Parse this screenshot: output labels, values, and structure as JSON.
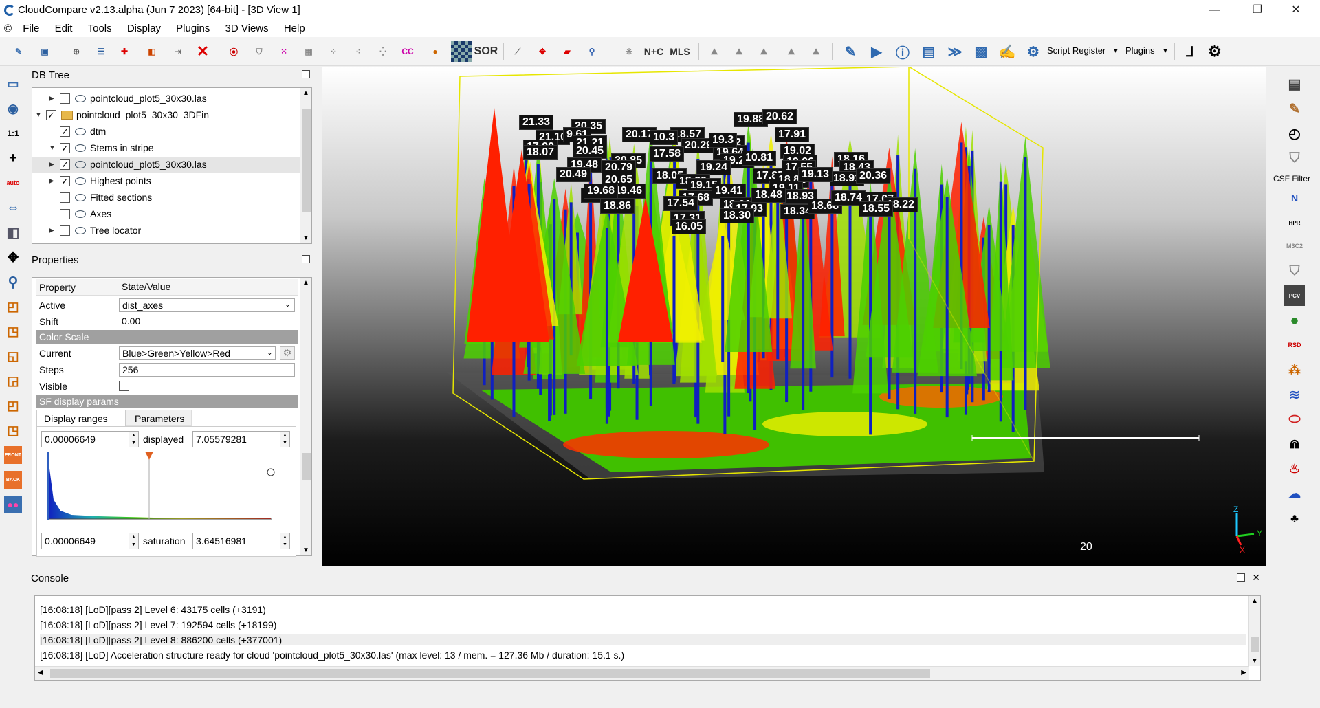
{
  "window": {
    "title": "CloudCompare v2.13.alpha (Jun  7 2023) [64-bit] - [3D View 1]",
    "min": "—",
    "max": "❐",
    "close": "✕"
  },
  "menu": [
    "File",
    "Edit",
    "Tools",
    "Display",
    "Plugins",
    "3D Views",
    "Help"
  ],
  "toolbar": {
    "sor": "SOR",
    "ncc": "N+C",
    "mls": "MLS",
    "cc": "CC",
    "script_register": "Script Register",
    "plugins": "Plugins"
  },
  "dbtree": {
    "title": "DB Tree",
    "items": [
      {
        "label": "pointcloud_plot5_30x30.las",
        "checked": false,
        "expand": "▶"
      },
      {
        "label": "pointcloud_plot5_30x30_3DFin",
        "checked": true,
        "expand": "▼"
      },
      {
        "label": "dtm",
        "checked": true,
        "expand": ""
      },
      {
        "label": "Stems in stripe",
        "checked": true,
        "expand": "▼"
      },
      {
        "label": "pointcloud_plot5_30x30.las",
        "checked": true,
        "expand": "▶"
      },
      {
        "label": "Highest points",
        "checked": true,
        "expand": "▶"
      },
      {
        "label": "Fitted sections",
        "checked": false,
        "expand": ""
      },
      {
        "label": "Axes",
        "checked": false,
        "expand": ""
      },
      {
        "label": "Tree locator",
        "checked": false,
        "expand": "▶"
      }
    ]
  },
  "properties": {
    "title": "Properties",
    "col_property": "Property",
    "col_value": "State/Value",
    "active_label": "Active",
    "active_value": "dist_axes",
    "shift_label": "Shift",
    "shift_value": "0.00",
    "color_scale_header": "Color Scale",
    "current_label": "Current",
    "current_value": "Blue>Green>Yellow>Red",
    "steps_label": "Steps",
    "steps_value": "256",
    "visible_label": "Visible",
    "sf_header": "SF display params",
    "tab_display_ranges": "Display ranges",
    "tab_parameters": "Parameters",
    "min_displayed": "0.00006649",
    "displayed_label": "displayed",
    "max_displayed": "7.05579281",
    "min_saturation": "0.00006649",
    "saturation_label": "saturation",
    "max_saturation": "3.64516981"
  },
  "view3d": {
    "scale_value": "20",
    "axis_z": "Z",
    "axis_y": "Y",
    "axis_x": "X",
    "labels": [
      "21.33",
      "20.35",
      "21.10",
      "9.61",
      "17.90",
      "18.07",
      "21.21",
      "20.45",
      "19.48",
      "20.49",
      "20.85",
      "20.65",
      "19.46",
      "17.25",
      "18.86",
      "20.17",
      "18.57",
      "19.82",
      "20.29",
      "19.64",
      "17.58",
      "19.20",
      "19.24",
      "18.05",
      "18.29",
      "19.15",
      "17.68",
      "17.54",
      "17.31",
      "16.05",
      "19.41",
      "18.61",
      "17.93",
      "18.30",
      "19.88",
      "20.62",
      "17.91",
      "19.02",
      "19.06",
      "17.85",
      "18.82",
      "19.11",
      "18.93",
      "18.48",
      "18.34",
      "18.68",
      "18.16",
      "18.43",
      "18.91",
      "20.36",
      "18.74",
      "17.07",
      "18.22",
      "18.55",
      "17.55",
      "19.13",
      "19.68",
      "20.79",
      "10.3",
      "19.3",
      "10.81"
    ],
    "accent_red": "#ff2000",
    "accent_green": "#4cd000",
    "accent_blue": "#1020c0",
    "bbox_color": "#e6e600"
  },
  "right_panel": {
    "csf_label": "CSF Filter"
  },
  "console": {
    "title": "Console",
    "lines": [
      "[16:08:18] [LoD][pass 2] Level 6: 43175 cells (+3191)",
      "[16:08:18] [LoD][pass 2] Level 7: 192594 cells (+18199)",
      "[16:08:18] [LoD][pass 2] Level 8: 886200 cells (+377001)",
      "[16:08:18] [LoD] Acceleration structure ready for cloud 'pointcloud_plot5_30x30.las' (max level: 13 / mem. = 127.36 Mb / duration: 15.1 s.)"
    ]
  }
}
